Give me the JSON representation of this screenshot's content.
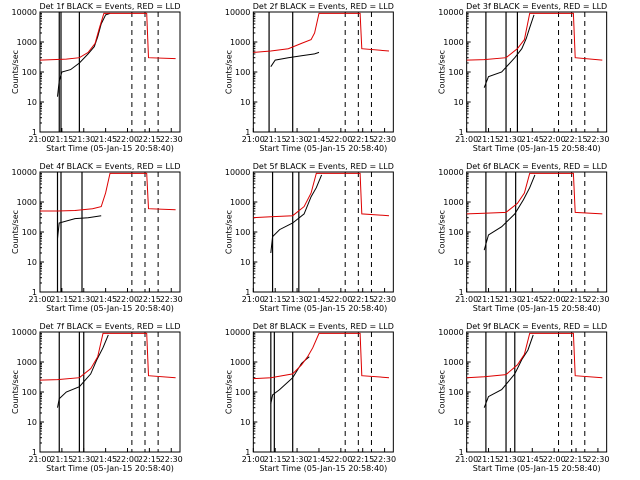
{
  "chart_data": [
    {
      "type": "line",
      "title": "Det 1f BLACK = Events, RED = LLD",
      "xlabel": "Start Time (05-Jan-15 20:58:40)",
      "ylabel": "Counts/sec",
      "xticks": [
        "21:00",
        "21:15",
        "21:30",
        "21:45",
        "22:00",
        "22:15",
        "22:30"
      ],
      "yticks": [
        "1",
        "10",
        "100",
        "1000",
        "10000"
      ],
      "ylim": [
        1,
        10000
      ],
      "yscale": "log",
      "series": [
        {
          "color": "#000000",
          "points": [
            [
              21.2,
              15
            ],
            [
              21.22,
              50
            ],
            [
              21.25,
              100
            ],
            [
              21.35,
              120
            ],
            [
              21.45,
              200
            ],
            [
              21.55,
              400
            ],
            [
              21.62,
              700
            ],
            [
              21.66,
              1500
            ],
            [
              21.7,
              4000
            ],
            [
              21.75,
              8000
            ],
            [
              21.8,
              9000
            ]
          ]
        },
        {
          "color": "#dd0000",
          "points": [
            [
              21.0,
              250
            ],
            [
              21.15,
              260
            ],
            [
              21.3,
              270
            ],
            [
              21.45,
              300
            ],
            [
              21.55,
              450
            ],
            [
              21.63,
              900
            ],
            [
              21.68,
              3000
            ],
            [
              21.73,
              9000
            ],
            [
              22.22,
              9000
            ],
            [
              22.24,
              300
            ],
            [
              22.55,
              280
            ]
          ]
        }
      ],
      "solid_lines": [
        21.22,
        21.24,
        21.45
      ],
      "dashed_lines": [
        22.05,
        22.2,
        22.35
      ]
    },
    {
      "type": "line",
      "title": "Det 2f BLACK = Events, RED = LLD",
      "xlabel": "Start Time (05-Jan-15 20:58:40)",
      "ylabel": "Counts/sec",
      "xticks": [
        "21:00",
        "21:15",
        "21:30",
        "21:45",
        "22:00",
        "22:15",
        "22:30"
      ],
      "yticks": [
        "1",
        "10",
        "100",
        "1000",
        "10000"
      ],
      "ylim": [
        1,
        10000
      ],
      "yscale": "log",
      "series": [
        {
          "color": "#000000",
          "points": [
            [
              21.2,
              150
            ],
            [
              21.25,
              250
            ],
            [
              21.4,
              300
            ],
            [
              21.55,
              350
            ],
            [
              21.7,
              400
            ],
            [
              21.75,
              450
            ]
          ]
        },
        {
          "color": "#dd0000",
          "points": [
            [
              21.0,
              450
            ],
            [
              21.2,
              500
            ],
            [
              21.4,
              600
            ],
            [
              21.55,
              900
            ],
            [
              21.66,
              1200
            ],
            [
              21.7,
              2000
            ],
            [
              21.75,
              9000
            ],
            [
              22.22,
              9000
            ],
            [
              22.24,
              600
            ],
            [
              22.55,
              500
            ]
          ]
        }
      ],
      "solid_lines": [
        21.18,
        21.45
      ],
      "dashed_lines": [
        22.05,
        22.2,
        22.35
      ]
    },
    {
      "type": "line",
      "title": "Det 3f BLACK = Events, RED = LLD",
      "xlabel": "Start Time (05-Jan-15 20:58:40)",
      "ylabel": "Counts/sec",
      "xticks": [
        "21:00",
        "21:15",
        "21:30",
        "21:45",
        "22:00",
        "22:15",
        "22:30"
      ],
      "yticks": [
        "1",
        "10",
        "100",
        "1000",
        "10000"
      ],
      "ylim": [
        1,
        10000
      ],
      "yscale": "log",
      "series": [
        {
          "color": "#000000",
          "points": [
            [
              21.2,
              30
            ],
            [
              21.25,
              70
            ],
            [
              21.4,
              100
            ],
            [
              21.55,
              300
            ],
            [
              21.63,
              600
            ],
            [
              21.68,
              1300
            ],
            [
              21.72,
              3000
            ],
            [
              21.77,
              8000
            ]
          ]
        },
        {
          "color": "#dd0000",
          "points": [
            [
              21.0,
              250
            ],
            [
              21.2,
              260
            ],
            [
              21.45,
              300
            ],
            [
              21.58,
              600
            ],
            [
              21.66,
              1200
            ],
            [
              21.72,
              9000
            ],
            [
              22.22,
              9000
            ],
            [
              22.24,
              300
            ],
            [
              22.55,
              250
            ]
          ]
        }
      ],
      "solid_lines": [
        21.22,
        21.45,
        21.58
      ],
      "dashed_lines": [
        22.05,
        22.2,
        22.35
      ]
    },
    {
      "type": "line",
      "title": "Det 4f BLACK = Events, RED = LLD",
      "xlabel": "Start Time (05-Jan-15 20:58:40)",
      "ylabel": "Counts/sec",
      "xticks": [
        "21:00",
        "21:15",
        "21:30",
        "21:45",
        "22:00",
        "22:15",
        "22:30"
      ],
      "yticks": [
        "1",
        "10",
        "100",
        "1000",
        "10000"
      ],
      "ylim": [
        1,
        10000
      ],
      "yscale": "log",
      "series": [
        {
          "color": "#000000",
          "points": [
            [
              21.2,
              60
            ],
            [
              21.22,
              200
            ],
            [
              21.4,
              280
            ],
            [
              21.55,
              300
            ],
            [
              21.7,
              350
            ]
          ]
        },
        {
          "color": "#dd0000",
          "points": [
            [
              21.0,
              500
            ],
            [
              21.2,
              500
            ],
            [
              21.4,
              520
            ],
            [
              21.6,
              600
            ],
            [
              21.7,
              700
            ],
            [
              21.75,
              2000
            ],
            [
              21.8,
              9000
            ],
            [
              22.22,
              9000
            ],
            [
              22.24,
              600
            ],
            [
              22.55,
              550
            ]
          ]
        }
      ],
      "solid_lines": [
        21.2,
        21.24,
        21.48
      ],
      "dashed_lines": [
        22.05,
        22.2,
        22.35
      ]
    },
    {
      "type": "line",
      "title": "Det 5f BLACK = Events, RED = LLD",
      "xlabel": "Start Time (05-Jan-15 20:58:40)",
      "ylabel": "Counts/sec",
      "xticks": [
        "21:00",
        "21:15",
        "21:30",
        "21:45",
        "22:00",
        "22:15",
        "22:30"
      ],
      "yticks": [
        "1",
        "10",
        "100",
        "1000",
        "10000"
      ],
      "ylim": [
        1,
        10000
      ],
      "yscale": "log",
      "series": [
        {
          "color": "#000000",
          "points": [
            [
              21.2,
              20
            ],
            [
              21.22,
              70
            ],
            [
              21.3,
              120
            ],
            [
              21.45,
              200
            ],
            [
              21.58,
              400
            ],
            [
              21.66,
              1500
            ],
            [
              21.72,
              3000
            ],
            [
              21.78,
              8000
            ]
          ]
        },
        {
          "color": "#dd0000",
          "points": [
            [
              21.0,
              300
            ],
            [
              21.2,
              320
            ],
            [
              21.45,
              350
            ],
            [
              21.58,
              700
            ],
            [
              21.66,
              2000
            ],
            [
              21.72,
              9000
            ],
            [
              22.22,
              9000
            ],
            [
              22.24,
              400
            ],
            [
              22.55,
              350
            ]
          ]
        }
      ],
      "solid_lines": [
        21.22,
        21.45,
        21.52
      ],
      "dashed_lines": [
        22.05,
        22.2,
        22.35
      ]
    },
    {
      "type": "line",
      "title": "Det 6f BLACK = Events, RED = LLD",
      "xlabel": "Start Time (05-Jan-15 20:58:40)",
      "ylabel": "Counts/sec",
      "xticks": [
        "21:00",
        "21:15",
        "21:30",
        "21:45",
        "22:00",
        "22:15",
        "22:30"
      ],
      "yticks": [
        "1",
        "10",
        "100",
        "1000",
        "10000"
      ],
      "ylim": [
        1,
        10000
      ],
      "yscale": "log",
      "series": [
        {
          "color": "#000000",
          "points": [
            [
              21.2,
              25
            ],
            [
              21.25,
              80
            ],
            [
              21.4,
              150
            ],
            [
              21.55,
              400
            ],
            [
              21.65,
              1200
            ],
            [
              21.72,
              3000
            ],
            [
              21.78,
              8000
            ]
          ]
        },
        {
          "color": "#dd0000",
          "points": [
            [
              21.0,
              400
            ],
            [
              21.2,
              420
            ],
            [
              21.45,
              450
            ],
            [
              21.58,
              900
            ],
            [
              21.66,
              2000
            ],
            [
              21.72,
              9000
            ],
            [
              22.22,
              9000
            ],
            [
              22.24,
              450
            ],
            [
              22.55,
              400
            ]
          ]
        }
      ],
      "solid_lines": [
        21.22,
        21.45,
        21.56
      ],
      "dashed_lines": [
        22.05,
        22.2,
        22.35
      ]
    },
    {
      "type": "line",
      "title": "Det 7f BLACK = Events, RED = LLD",
      "xlabel": "Start Time (05-Jan-15 20:58:40)",
      "ylabel": "Counts/sec",
      "xticks": [
        "21:00",
        "21:15",
        "21:30",
        "21:45",
        "22:00",
        "22:15",
        "22:30"
      ],
      "yticks": [
        "1",
        "10",
        "100",
        "1000",
        "10000"
      ],
      "ylim": [
        1,
        10000
      ],
      "yscale": "log",
      "series": [
        {
          "color": "#000000",
          "points": [
            [
              21.2,
              30
            ],
            [
              21.22,
              60
            ],
            [
              21.3,
              100
            ],
            [
              21.45,
              150
            ],
            [
              21.58,
              400
            ],
            [
              21.65,
              1200
            ],
            [
              21.72,
              3000
            ],
            [
              21.78,
              8000
            ]
          ]
        },
        {
          "color": "#dd0000",
          "points": [
            [
              21.0,
              250
            ],
            [
              21.2,
              260
            ],
            [
              21.45,
              300
            ],
            [
              21.58,
              600
            ],
            [
              21.66,
              1500
            ],
            [
              21.72,
              9000
            ],
            [
              22.22,
              9000
            ],
            [
              22.24,
              350
            ],
            [
              22.55,
              300
            ]
          ]
        }
      ],
      "solid_lines": [
        21.22,
        21.45,
        21.5
      ],
      "dashed_lines": [
        22.05,
        22.2,
        22.35
      ]
    },
    {
      "type": "line",
      "title": "Det 8f BLACK = Events, RED = LLD",
      "xlabel": "Start Time (05-Jan-15 20:58:40)",
      "ylabel": "Counts/sec",
      "xticks": [
        "21:00",
        "21:15",
        "21:30",
        "21:45",
        "22:00",
        "22:15",
        "22:30"
      ],
      "yticks": [
        "1",
        "10",
        "100",
        "1000",
        "10000"
      ],
      "ylim": [
        1,
        10000
      ],
      "yscale": "log",
      "series": [
        {
          "color": "#000000",
          "points": [
            [
              21.2,
              40
            ],
            [
              21.22,
              80
            ],
            [
              21.3,
              120
            ],
            [
              21.45,
              300
            ],
            [
              21.55,
              900
            ],
            [
              21.6,
              1200
            ],
            [
              21.64,
              1500
            ]
          ]
        },
        {
          "color": "#dd0000",
          "points": [
            [
              21.0,
              280
            ],
            [
              21.2,
              300
            ],
            [
              21.45,
              400
            ],
            [
              21.55,
              800
            ],
            [
              21.62,
              1500
            ],
            [
              21.68,
              3000
            ],
            [
              21.75,
              9000
            ],
            [
              22.22,
              9000
            ],
            [
              22.24,
              350
            ],
            [
              22.55,
              300
            ]
          ]
        }
      ],
      "solid_lines": [
        21.2,
        21.24,
        21.45
      ],
      "dashed_lines": [
        22.05,
        22.2,
        22.35
      ]
    },
    {
      "type": "line",
      "title": "Det 9f BLACK = Events, RED = LLD",
      "xlabel": "Start Time (05-Jan-15 20:58:40)",
      "ylabel": "Counts/sec",
      "xticks": [
        "21:00",
        "21:15",
        "21:30",
        "21:45",
        "22:00",
        "22:15",
        "22:30"
      ],
      "yticks": [
        "1",
        "10",
        "100",
        "1000",
        "10000"
      ],
      "ylim": [
        1,
        10000
      ],
      "yscale": "log",
      "series": [
        {
          "color": "#000000",
          "points": [
            [
              21.2,
              30
            ],
            [
              21.25,
              70
            ],
            [
              21.4,
              120
            ],
            [
              21.55,
              400
            ],
            [
              21.63,
              1200
            ],
            [
              21.7,
              2500
            ],
            [
              21.76,
              8000
            ]
          ]
        },
        {
          "color": "#dd0000",
          "points": [
            [
              21.0,
              300
            ],
            [
              21.2,
              320
            ],
            [
              21.45,
              380
            ],
            [
              21.58,
              800
            ],
            [
              21.66,
              1800
            ],
            [
              21.72,
              9000
            ],
            [
              22.22,
              9000
            ],
            [
              22.24,
              350
            ],
            [
              22.55,
              300
            ]
          ]
        }
      ],
      "solid_lines": [
        21.22,
        21.45,
        21.55
      ],
      "dashed_lines": [
        22.05,
        22.2,
        22.35
      ]
    }
  ]
}
